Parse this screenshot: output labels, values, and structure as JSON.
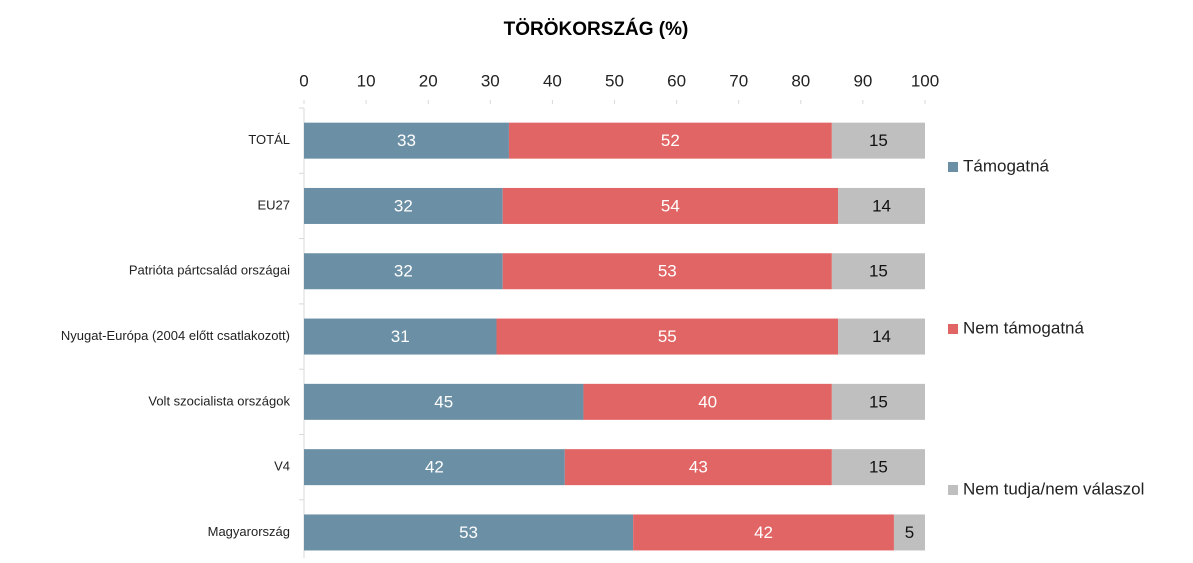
{
  "chart_data": {
    "type": "stacked_bar_horizontal",
    "title": "TÖRÖKORSZÁG (%)",
    "categories": [
      "TOTÁL",
      "EU27",
      "Patrióta pártcsalád országai",
      "Nyugat-Európa (2004 előtt csatlakozott)",
      "Volt szocialista országok",
      "V4",
      "Magyarország"
    ],
    "series": [
      {
        "name": "Támogatná",
        "color": "#6b8fa5",
        "values": [
          33,
          32,
          32,
          31,
          45,
          42,
          53
        ]
      },
      {
        "name": "Nem támogatná",
        "color": "#e26565",
        "values": [
          52,
          54,
          53,
          55,
          40,
          43,
          42
        ]
      },
      {
        "name": "Nem tudja/nem válaszol",
        "color": "#bfbfbf",
        "values": [
          15,
          14,
          15,
          14,
          15,
          15,
          5
        ]
      }
    ],
    "xlim": [
      0,
      100
    ],
    "xticks": [
      0,
      10,
      20,
      30,
      40,
      50,
      60,
      70,
      80,
      90,
      100
    ],
    "legend": "right",
    "grid": false
  }
}
